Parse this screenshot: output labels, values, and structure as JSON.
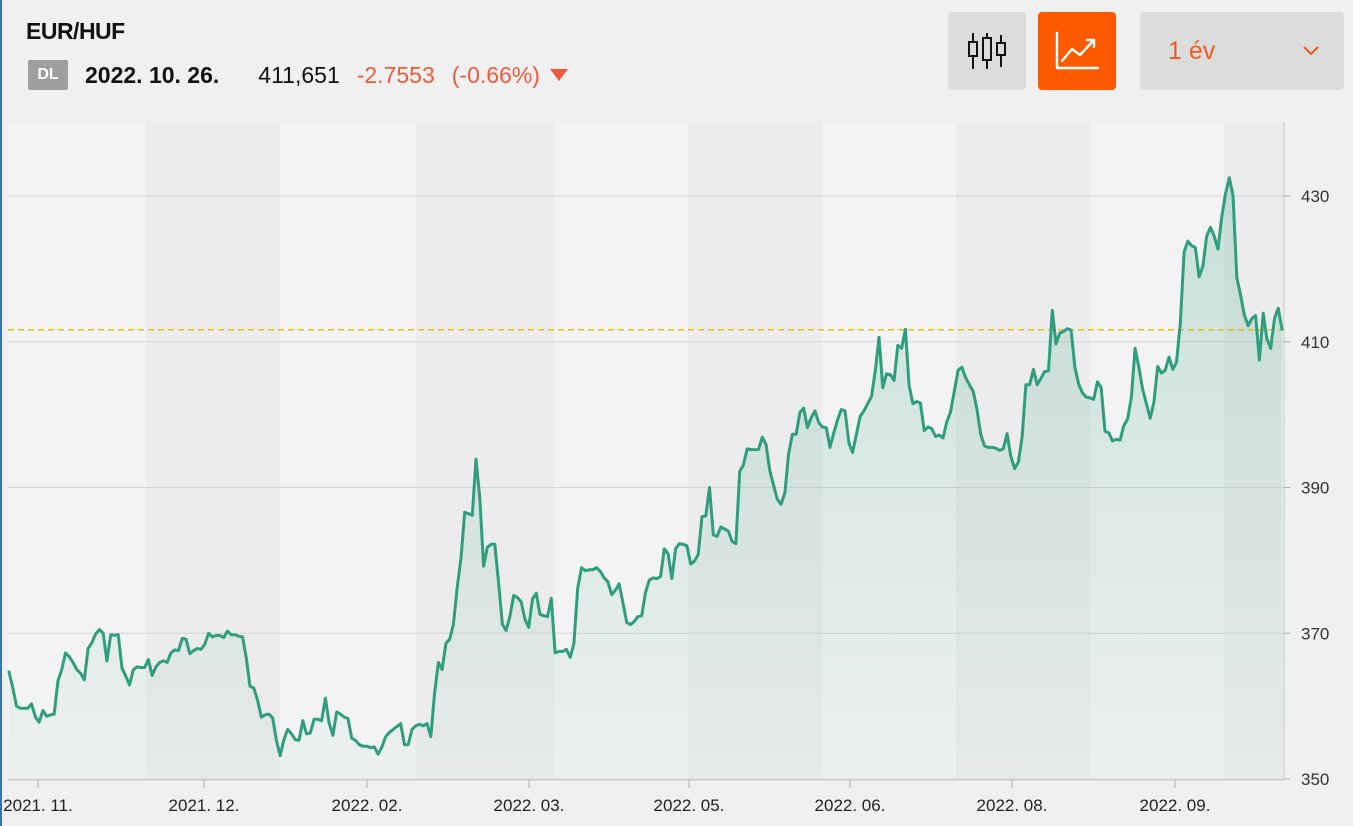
{
  "header": {
    "pair": "EUR/HUF",
    "badge": "DL",
    "date": "2022. 10. 26.",
    "price": "411,651",
    "change": "-2.7553",
    "change_pct": "(-0.66%)",
    "trend_icon": "down-triangle-icon"
  },
  "controls": {
    "candlestick_icon": "candlestick-icon",
    "line_chart_icon": "line-chart-icon",
    "range_label": "1 év",
    "range_icon": "chevron-down-icon"
  },
  "colors": {
    "accent": "#ff5a00",
    "negative": "#f05a3c",
    "line": "#2e9e7e",
    "reference": "#e8c020"
  },
  "chart_data": {
    "type": "area",
    "ylim": [
      349,
      440
    ],
    "y_ticks": [
      350,
      370,
      390,
      410,
      430
    ],
    "x_ticks": [
      "2021. 11.",
      "2021. 12.",
      "2022. 02.",
      "2022. 03.",
      "2022. 05.",
      "2022. 06.",
      "2022. 08.",
      "2022. 09."
    ],
    "reference_line": 411.65,
    "grid": true,
    "series": [
      {
        "values": [
          364.7,
          362.5,
          360,
          359.7,
          359.7,
          359.7,
          360.3,
          358.5,
          357.8,
          359.4,
          358.6,
          358.8,
          358.9,
          363.5,
          365,
          367.3,
          366.8,
          366,
          365,
          364.5,
          363.6,
          367.9,
          368.7,
          369.9,
          370.5,
          370,
          366.2,
          369.8,
          369.7,
          369.8,
          365.2,
          364.1,
          362.9,
          365,
          365.4,
          365.3,
          365.3,
          366.4,
          364.2,
          365.4,
          366,
          366.2,
          366,
          367.3,
          367.7,
          367.6,
          369.3,
          369.2,
          367.2,
          367.6,
          367.9,
          367.8,
          368.5,
          370,
          369.5,
          369.7,
          369.7,
          369.4,
          370.3,
          369.8,
          369.8,
          369.6,
          369.5,
          366.6,
          362.7,
          362.5,
          360.8,
          358.5,
          358.8,
          358.9,
          358.4,
          355.3,
          353.2,
          355.4,
          356.8,
          356.2,
          355.4,
          355.3,
          358,
          356.2,
          356.3,
          358.2,
          358.2,
          358,
          361.1,
          357.7,
          356,
          359.2,
          358.9,
          358.5,
          358.3,
          355.6,
          355.3,
          354.7,
          354.5,
          354.5,
          354.3,
          354.4,
          353.4,
          354.4,
          355.8,
          356.4,
          356.8,
          357.2,
          357.6,
          354.7,
          354.7,
          356.8,
          357.3,
          357.5,
          357.3,
          357.6,
          355.8,
          361.8,
          366,
          365,
          368.6,
          369.2,
          371.2,
          376.3,
          380.3,
          386.6,
          386.4,
          386.2,
          393.9,
          388.5,
          379.2,
          381.8,
          382.2,
          382.2,
          376.9,
          371.2,
          370.4,
          372.3,
          375.2,
          374.9,
          374.3,
          371.9,
          370.8,
          374.7,
          375.5,
          372.6,
          372.4,
          372.3,
          374.8,
          367.3,
          367.5,
          367.5,
          367.8,
          366.7,
          368.6,
          376.2,
          379,
          378.6,
          378.7,
          378.7,
          379,
          378.5,
          377.6,
          377.1,
          375.3,
          375.9,
          376.8,
          374.2,
          371.5,
          371.2,
          371.6,
          372.3,
          372.4,
          375.6,
          377.3,
          377.6,
          377.5,
          377.8,
          381.6,
          380.9,
          377.5,
          381.6,
          382.3,
          382.2,
          382,
          379.5,
          379.9,
          380.8,
          386,
          386.1,
          390,
          383.5,
          383.3,
          384.6,
          384.3,
          384,
          382.6,
          382.3,
          392.2,
          393.1,
          395.3,
          395.2,
          395.2,
          395.2,
          396.9,
          395.9,
          392.3,
          390.3,
          388.4,
          387.7,
          389.3,
          394.6,
          397.3,
          397.3,
          400.3,
          400.9,
          398.2,
          399.6,
          400.5,
          398.9,
          398.3,
          398.2,
          395.5,
          397.5,
          399.3,
          400.7,
          400.5,
          396.1,
          394.8,
          397.3,
          399.8,
          400.5,
          401.5,
          402.5,
          405.9,
          410.6,
          403.7,
          405.6,
          405.5,
          404.7,
          409.5,
          409.1,
          411.7,
          404,
          401.5,
          401.8,
          401.6,
          397.8,
          398.3,
          398.1,
          397,
          397.2,
          396.8,
          399,
          400.4,
          403.2,
          406.1,
          406.5,
          405.1,
          404.1,
          403.2,
          400.8,
          397.3,
          395.7,
          395.5,
          395.5,
          395.4,
          395.1,
          395.3,
          397.4,
          394.3,
          392.6,
          393.5,
          396.9,
          404.1,
          404.1,
          406.2,
          404.1,
          405,
          405.9,
          406,
          414.3,
          409.7,
          411.2,
          411.4,
          411.8,
          411.6,
          406.5,
          404.2,
          403,
          402.4,
          402.3,
          402.1,
          404.5,
          403.7,
          397.7,
          397.5,
          396.4,
          396.6,
          396.5,
          398.5,
          399.4,
          402.3,
          409.1,
          406.5,
          403.5,
          401.5,
          399.5,
          401.7,
          406.6,
          405.7,
          406.1,
          407.9,
          406.2,
          407.2,
          412.5,
          422.3,
          423.8,
          423.2,
          422.9,
          418.9,
          420.4,
          424.5,
          425.7,
          424.5,
          422.7,
          427.1,
          430.3,
          432.5,
          430.1,
          418.8,
          416.4,
          413.7,
          412.2,
          413.2,
          413.6,
          407.5,
          413.9,
          410.4,
          409.1,
          413.2,
          414.6,
          411.7
        ]
      }
    ]
  }
}
